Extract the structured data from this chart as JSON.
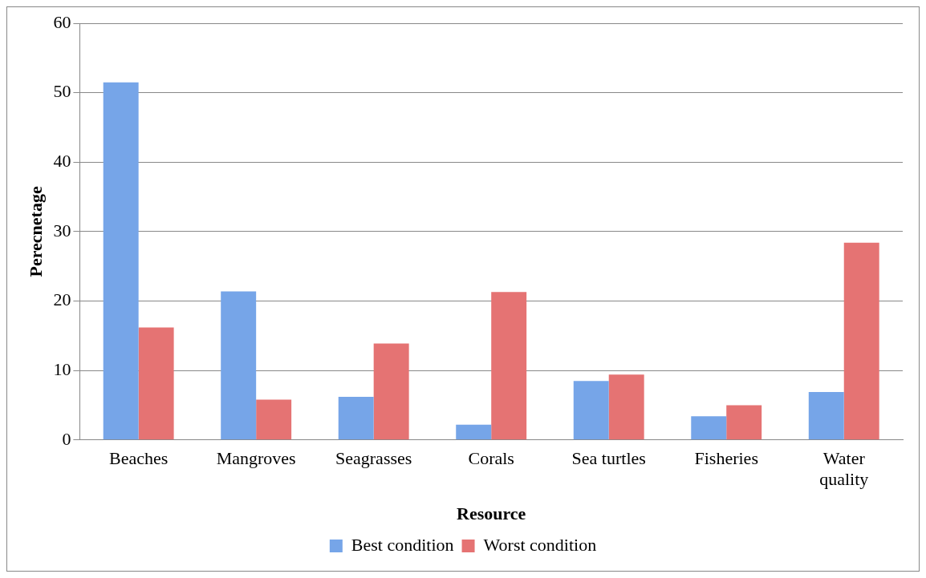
{
  "chart_data": {
    "type": "bar",
    "xlabel": "Resource",
    "ylabel": "Perecnetage",
    "categories": [
      "Beaches",
      "Mangroves",
      "Seagrasses",
      "Corals",
      "Sea turtles",
      "Fisheries",
      "Water quality"
    ],
    "series": [
      {
        "name": "Best condition",
        "color": "#76a5e8",
        "values": [
          51.5,
          21.4,
          6.2,
          2.2,
          8.5,
          3.4,
          6.9
        ]
      },
      {
        "name": "Worst condition",
        "color": "#e57373",
        "values": [
          16.2,
          5.8,
          13.9,
          21.3,
          9.4,
          5.0,
          28.4
        ]
      }
    ],
    "ylim": [
      0,
      60
    ],
    "yticks": [
      0,
      10,
      20,
      30,
      40,
      50,
      60
    ],
    "grid": "y",
    "legend": "bottom"
  }
}
